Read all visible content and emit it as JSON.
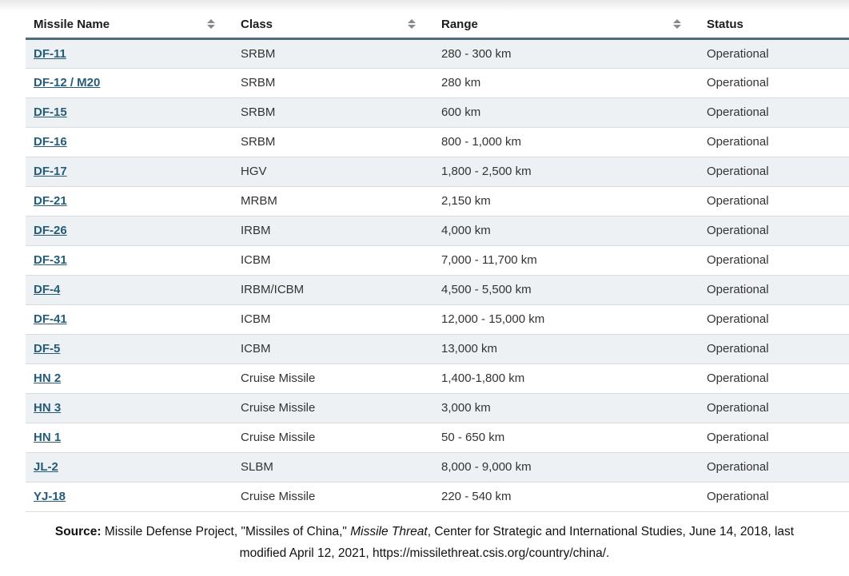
{
  "table": {
    "columns": [
      {
        "label": "Missile Name",
        "sortable": true
      },
      {
        "label": "Class",
        "sortable": true
      },
      {
        "label": "Range",
        "sortable": true
      },
      {
        "label": "Status",
        "sortable": false
      }
    ],
    "rows": [
      {
        "name": "DF-11",
        "class": "SRBM",
        "range": "280 - 300 km",
        "status": "Operational"
      },
      {
        "name": "DF-12 / M20",
        "class": "SRBM",
        "range": "280 km",
        "status": "Operational"
      },
      {
        "name": "DF-15",
        "class": "SRBM",
        "range": "600 km",
        "status": "Operational"
      },
      {
        "name": "DF-16",
        "class": "SRBM",
        "range": "800 - 1,000 km",
        "status": "Operational"
      },
      {
        "name": "DF-17",
        "class": "HGV",
        "range": "1,800 - 2,500 km",
        "status": "Operational"
      },
      {
        "name": "DF-21",
        "class": "MRBM",
        "range": "2,150 km",
        "status": "Operational"
      },
      {
        "name": "DF-26",
        "class": "IRBM",
        "range": "4,000 km",
        "status": "Operational"
      },
      {
        "name": "DF-31",
        "class": "ICBM",
        "range": "7,000 - 11,700 km",
        "status": "Operational"
      },
      {
        "name": "DF-4",
        "class": "IRBM/ICBM",
        "range": "4,500 - 5,500 km",
        "status": "Operational"
      },
      {
        "name": "DF-41",
        "class": "ICBM",
        "range": "12,000 - 15,000 km",
        "status": "Operational"
      },
      {
        "name": "DF-5",
        "class": "ICBM",
        "range": "13,000 km",
        "status": "Operational"
      },
      {
        "name": "HN 2",
        "class": "Cruise Missile",
        "range": "1,400-1,800 km",
        "status": "Operational"
      },
      {
        "name": "HN 3",
        "class": "Cruise Missile",
        "range": "3,000 km",
        "status": "Operational"
      },
      {
        "name": "HN 1",
        "class": "Cruise Missile",
        "range": "50 - 650 km",
        "status": "Operational"
      },
      {
        "name": "JL-2",
        "class": "SLBM",
        "range": "8,000 - 9,000 km",
        "status": "Operational"
      },
      {
        "name": "YJ-18",
        "class": "Cruise Missile",
        "range": "220 - 540 km",
        "status": "Operational"
      }
    ]
  },
  "citation": {
    "prefix": "Source:",
    "part1": " Missile Defense Project, \"Missiles of China,\" ",
    "italic": "Missile Threat",
    "line1_rest": ", Center for Strategic and International Studies, June 14, 2018, last",
    "line2": "modified April 12, 2021, https://missilethreat.csis.org/country/china/."
  },
  "colors": {
    "link": "#255c78",
    "header_border": "#4d6a77",
    "alt_row_bg": "#eef1f4",
    "row_border": "#d9dde0",
    "cell_text": "#333333",
    "header_text": "#1b1b1b",
    "sort_icon": "#8a8a8a"
  }
}
